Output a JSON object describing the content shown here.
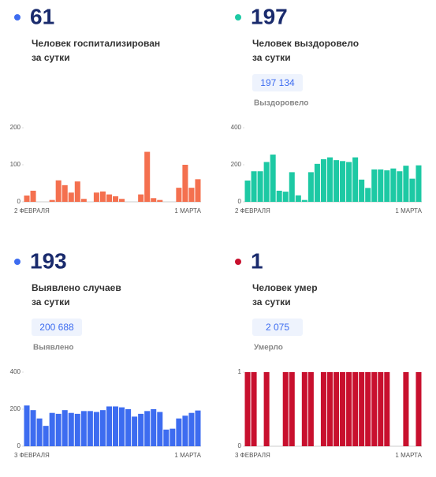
{
  "chart_data": [
    {
      "type": "bar",
      "headline": 61,
      "dot_color": "#3d6cf0",
      "description": [
        "Человек госпитализирован",
        "за сутки"
      ],
      "categories": [
        "2 ФЕВРАЛЯ",
        null,
        null,
        null,
        null,
        null,
        null,
        null,
        null,
        null,
        null,
        null,
        null,
        null,
        null,
        null,
        null,
        null,
        null,
        null,
        null,
        null,
        null,
        null,
        null,
        null,
        null,
        "1 МАРТА"
      ],
      "values": [
        17,
        30,
        0,
        0,
        5,
        58,
        45,
        25,
        55,
        8,
        0,
        25,
        28,
        20,
        15,
        8,
        0,
        0,
        20,
        135,
        10,
        5,
        0,
        0,
        38,
        100,
        38,
        61
      ],
      "color": "#f4704f",
      "ylim": [
        0,
        200
      ],
      "yticks": [
        0,
        100,
        200
      ]
    },
    {
      "type": "bar",
      "headline": 197,
      "dot_color": "#1dc9a4",
      "description": [
        "Человек выздоровело",
        "за сутки"
      ],
      "total": "197 134",
      "total_label": "Выздоровело",
      "categories": [
        "2 ФЕВРАЛЯ",
        null,
        null,
        null,
        null,
        null,
        null,
        null,
        null,
        null,
        null,
        null,
        null,
        null,
        null,
        null,
        null,
        null,
        null,
        null,
        null,
        null,
        null,
        null,
        null,
        null,
        null,
        "1 МАРТА"
      ],
      "values": [
        115,
        165,
        165,
        215,
        255,
        60,
        55,
        160,
        35,
        10,
        160,
        205,
        230,
        240,
        225,
        220,
        215,
        240,
        120,
        75,
        175,
        175,
        170,
        180,
        165,
        195,
        125,
        197
      ],
      "color": "#1dc9a4",
      "ylim": [
        0,
        400
      ],
      "yticks": [
        0,
        200,
        400
      ]
    },
    {
      "type": "bar",
      "headline": 193,
      "dot_color": "#3d6cf0",
      "description": [
        "Выявлено случаев",
        "за сутки"
      ],
      "total": "200 688",
      "total_label": "Выявлено",
      "categories": [
        "3 ФЕВРАЛЯ",
        null,
        null,
        null,
        null,
        null,
        null,
        null,
        null,
        null,
        null,
        null,
        null,
        null,
        null,
        null,
        null,
        null,
        null,
        null,
        null,
        null,
        null,
        null,
        null,
        null,
        null,
        "1 МАРТА"
      ],
      "values": [
        220,
        195,
        150,
        110,
        180,
        175,
        195,
        180,
        175,
        190,
        190,
        185,
        195,
        215,
        215,
        210,
        200,
        160,
        175,
        190,
        200,
        185,
        90,
        95,
        150,
        165,
        180,
        193
      ],
      "color": "#3d6cf0",
      "ylim": [
        0,
        400
      ],
      "yticks": [
        0,
        200,
        400
      ]
    },
    {
      "type": "bar",
      "headline": 1,
      "dot_color": "#c8102e",
      "description": [
        "Человек умер",
        "за сутки"
      ],
      "total": "2 075",
      "total_label": "Умерло",
      "categories": [
        "3 ФЕВРАЛЯ",
        null,
        null,
        null,
        null,
        null,
        null,
        null,
        null,
        null,
        null,
        null,
        null,
        null,
        null,
        null,
        null,
        null,
        null,
        null,
        null,
        null,
        null,
        null,
        null,
        null,
        null,
        "1 МАРТА"
      ],
      "values": [
        1,
        1,
        0,
        1,
        0,
        0,
        1,
        1,
        0,
        1,
        1,
        0,
        1,
        1,
        1,
        1,
        1,
        1,
        1,
        1,
        1,
        1,
        1,
        0,
        0,
        1,
        0,
        1
      ],
      "color": "#c8102e",
      "ylim": [
        0,
        1
      ],
      "yticks": [
        0,
        1
      ]
    }
  ]
}
